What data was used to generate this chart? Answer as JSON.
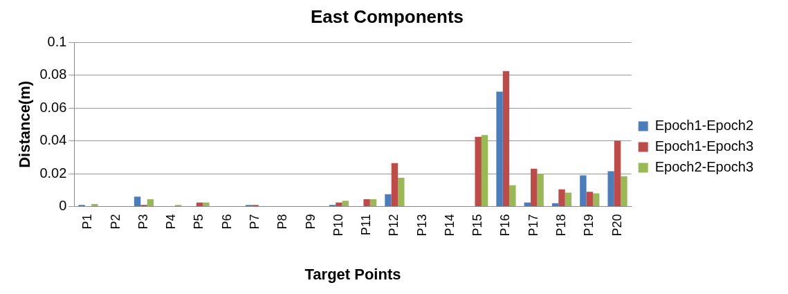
{
  "chart_data": {
    "type": "bar",
    "title": "East Components",
    "xlabel": "Target Points",
    "ylabel": "Distance(m)",
    "categories": [
      "P1",
      "P2",
      "P3",
      "P4",
      "P5",
      "P6",
      "P7",
      "P8",
      "P9",
      "P10",
      "P11",
      "P12",
      "P13",
      "P14",
      "P15",
      "P16",
      "P17",
      "P18",
      "P19",
      "P20"
    ],
    "series": [
      {
        "name": "Epoch1-Epoch2",
        "color": "#4a7ebb",
        "values": [
          0.001,
          0,
          0.006,
          0,
          0,
          0,
          0.001,
          0,
          0,
          0.001,
          0,
          0.0075,
          0,
          0,
          0,
          0.07,
          0.0025,
          0.002,
          0.019,
          0.0215
        ]
      },
      {
        "name": "Epoch1-Epoch3",
        "color": "#be4b48",
        "values": [
          0,
          0,
          0.001,
          0,
          0.0025,
          0,
          0.001,
          0,
          0,
          0.0025,
          0.0045,
          0.0265,
          0,
          0,
          0.0425,
          0.0825,
          0.023,
          0.0105,
          0.009,
          0.04
        ]
      },
      {
        "name": "Epoch2-Epoch3",
        "color": "#98b954",
        "values": [
          0.0015,
          0,
          0.0045,
          0.001,
          0.0025,
          0,
          0,
          0,
          0,
          0.0035,
          0.0045,
          0.0175,
          0,
          0,
          0.0435,
          0.013,
          0.02,
          0.0085,
          0.008,
          0.0185
        ]
      }
    ],
    "ylim": [
      0,
      0.1
    ],
    "yticks": [
      0,
      0.02,
      0.04,
      0.06,
      0.08,
      0.1
    ],
    "grid": "y",
    "legend": "right"
  }
}
